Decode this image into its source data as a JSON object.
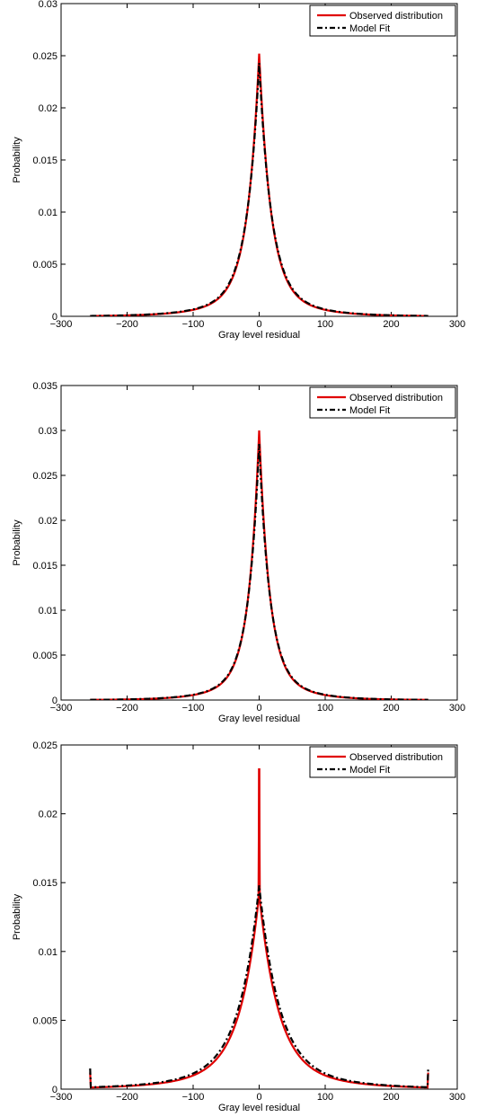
{
  "chart_data": [
    {
      "type": "line",
      "xlabel": "Gray level residual",
      "ylabel": "Probability",
      "xlim": [
        -300,
        300
      ],
      "ylim": [
        0,
        0.03
      ],
      "xticks": [
        "−300",
        "−200",
        "−100",
        "0",
        "100",
        "200",
        "300"
      ],
      "yticks": [
        "0",
        "0.005",
        "0.01",
        "0.015",
        "0.02",
        "0.025",
        "0.03"
      ],
      "legend_position": "top-right",
      "peak": 0.0252,
      "model_peak": 0.0243,
      "width": 17,
      "series": [
        {
          "name": "Observed distribution",
          "color": "#e00000",
          "style": "solid"
        },
        {
          "name": "Model Fit",
          "color": "#000000",
          "style": "dashdot"
        }
      ]
    },
    {
      "type": "line",
      "xlabel": "Gray level residual",
      "ylabel": "Probability",
      "xlim": [
        -300,
        300
      ],
      "ylim": [
        0,
        0.035
      ],
      "xticks": [
        "−300",
        "−200",
        "−100",
        "0",
        "100",
        "200",
        "300"
      ],
      "yticks": [
        "0",
        "0.005",
        "0.01",
        "0.015",
        "0.02",
        "0.025",
        "0.03",
        "0.035"
      ],
      "legend_position": "top-right",
      "peak": 0.03,
      "model_peak": 0.0285,
      "width": 15,
      "series": [
        {
          "name": "Observed distribution",
          "color": "#e00000",
          "style": "solid"
        },
        {
          "name": "Model Fit",
          "color": "#000000",
          "style": "dashdot"
        }
      ]
    },
    {
      "type": "line",
      "xlabel": "Gray level residual",
      "ylabel": "Probability",
      "xlim": [
        -300,
        300
      ],
      "ylim": [
        0,
        0.025
      ],
      "xticks": [
        "−300",
        "−200",
        "−100",
        "0",
        "100",
        "200",
        "300"
      ],
      "yticks": [
        "0",
        "0.005",
        "0.01",
        "0.015",
        "0.02",
        "0.025"
      ],
      "legend_position": "top-right",
      "peak": 0.0142,
      "model_peak": 0.0148,
      "spike": 0.0233,
      "width": 28,
      "edge_spike": 0.0015,
      "series": [
        {
          "name": "Observed distribution",
          "color": "#e00000",
          "style": "solid"
        },
        {
          "name": "Model Fit",
          "color": "#000000",
          "style": "dashdot"
        }
      ]
    }
  ]
}
